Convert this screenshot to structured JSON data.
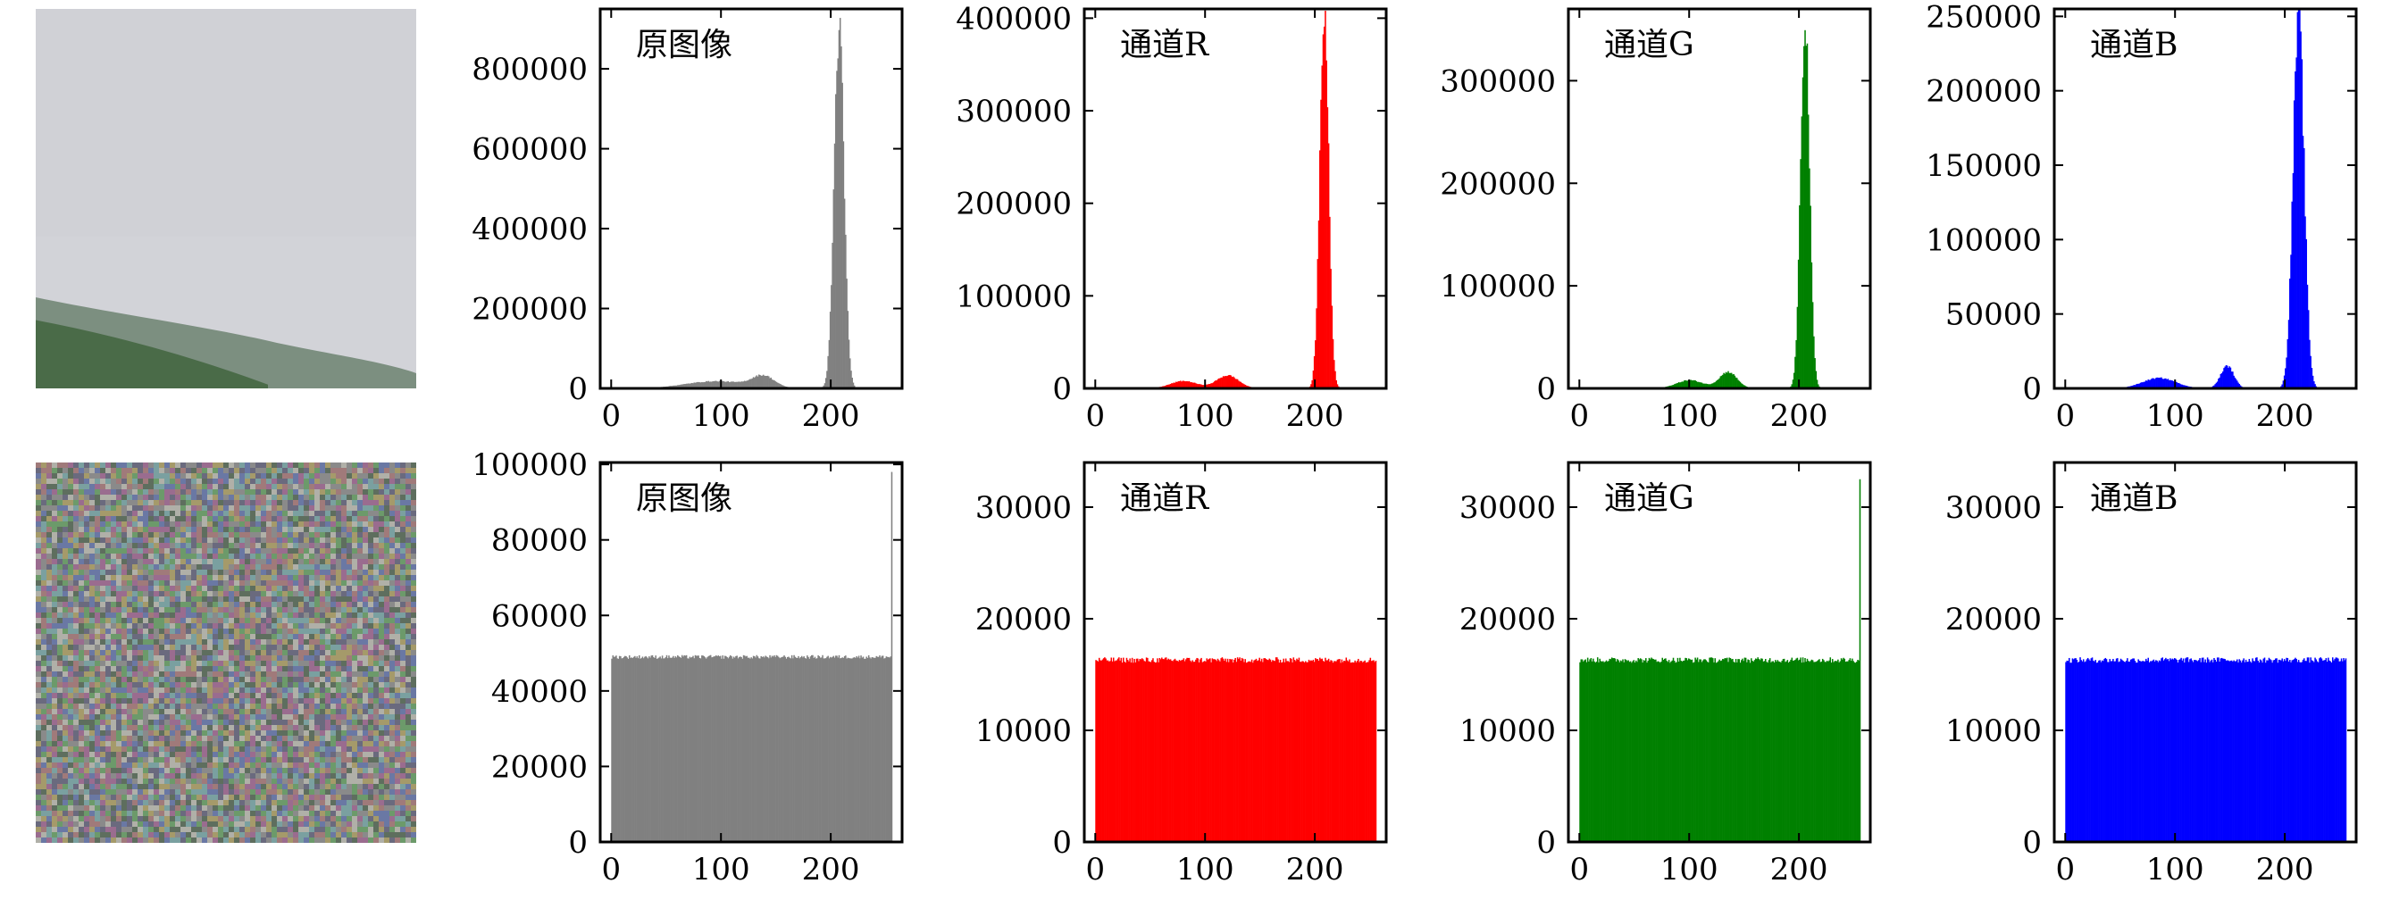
{
  "chart_data": [
    {
      "type": "bar",
      "row": "original",
      "title": "原图像",
      "color": "#808080",
      "x_ticks": [
        0,
        100,
        200
      ],
      "y_ticks": [
        0,
        200000,
        400000,
        600000,
        800000
      ],
      "xlim": [
        -10,
        265
      ],
      "ylim": [
        0,
        950000
      ],
      "distribution": {
        "kind": "natural",
        "hump1": [
          {
            "center": 95,
            "width": 28,
            "value": 18000
          },
          {
            "center": 138,
            "width": 10,
            "value": 28000
          }
        ],
        "peak": {
          "center": 207,
          "width": 4.5,
          "value": 900000
        }
      }
    },
    {
      "type": "bar",
      "row": "original",
      "title": "通道R",
      "color": "#ff0000",
      "x_ticks": [
        0,
        100,
        200
      ],
      "y_ticks": [
        0,
        100000,
        200000,
        300000,
        400000
      ],
      "xlim": [
        -10,
        265
      ],
      "ylim": [
        0,
        410000
      ],
      "distribution": {
        "kind": "natural",
        "hump1": [
          {
            "center": 80,
            "width": 12,
            "value": 8000
          },
          {
            "center": 120,
            "width": 10,
            "value": 14000
          }
        ],
        "peak": {
          "center": 208,
          "width": 4,
          "value": 410000
        }
      }
    },
    {
      "type": "bar",
      "row": "original",
      "title": "通道G",
      "color": "#008000",
      "x_ticks": [
        0,
        100,
        200
      ],
      "y_ticks": [
        0,
        100000,
        200000,
        300000
      ],
      "xlim": [
        -10,
        265
      ],
      "ylim": [
        0,
        370000
      ],
      "distribution": {
        "kind": "natural",
        "hump1": [
          {
            "center": 100,
            "width": 12,
            "value": 8000
          },
          {
            "center": 135,
            "width": 8,
            "value": 16000
          }
        ],
        "peak": {
          "center": 205,
          "width": 4,
          "value": 365000
        }
      }
    },
    {
      "type": "bar",
      "row": "original",
      "title": "通道B",
      "color": "#0000ff",
      "x_ticks": [
        0,
        100,
        200
      ],
      "y_ticks": [
        0,
        50000,
        100000,
        150000,
        200000,
        250000
      ],
      "xlim": [
        -10,
        265
      ],
      "ylim": [
        0,
        255000
      ],
      "distribution": {
        "kind": "natural",
        "hump1": [
          {
            "center": 85,
            "width": 15,
            "value": 7000
          },
          {
            "center": 147,
            "width": 6,
            "value": 15000
          }
        ],
        "peak": {
          "center": 212,
          "width": 5,
          "value": 250000
        }
      }
    },
    {
      "type": "bar",
      "row": "encrypted",
      "title": "原图像",
      "color": "#808080",
      "x_ticks": [
        0,
        100,
        200
      ],
      "y_ticks": [
        0,
        20000,
        40000,
        60000,
        80000,
        100000
      ],
      "xlim": [
        -10,
        265
      ],
      "ylim": [
        0,
        100500
      ],
      "distribution": {
        "kind": "uniform",
        "level": 49000,
        "jitter": 500,
        "spike": {
          "x": 255,
          "value": 98000
        }
      }
    },
    {
      "type": "bar",
      "row": "encrypted",
      "title": "通道R",
      "color": "#ff0000",
      "x_ticks": [
        0,
        100,
        200
      ],
      "y_ticks": [
        0,
        10000,
        20000,
        30000
      ],
      "xlim": [
        -10,
        265
      ],
      "ylim": [
        0,
        34000
      ],
      "distribution": {
        "kind": "uniform",
        "level": 16300,
        "jitter": 250
      }
    },
    {
      "type": "bar",
      "row": "encrypted",
      "title": "通道G",
      "color": "#008000",
      "x_ticks": [
        0,
        100,
        200
      ],
      "y_ticks": [
        0,
        10000,
        20000,
        30000
      ],
      "xlim": [
        -10,
        265
      ],
      "ylim": [
        0,
        34000
      ],
      "distribution": {
        "kind": "uniform",
        "level": 16300,
        "jitter": 250,
        "spike": {
          "x": 255,
          "value": 32500
        }
      }
    },
    {
      "type": "bar",
      "row": "encrypted",
      "title": "通道B",
      "color": "#0000ff",
      "x_ticks": [
        0,
        100,
        200
      ],
      "y_ticks": [
        0,
        10000,
        20000,
        30000
      ],
      "xlim": [
        -10,
        265
      ],
      "ylim": [
        0,
        34000
      ],
      "distribution": {
        "kind": "uniform",
        "level": 16300,
        "jitter": 250
      }
    }
  ],
  "images": [
    {
      "label": "",
      "kind": "landscape",
      "sky_color": "#d2d3d8",
      "hill_color": "#4a6b48"
    },
    {
      "label": "",
      "kind": "noise"
    }
  ]
}
